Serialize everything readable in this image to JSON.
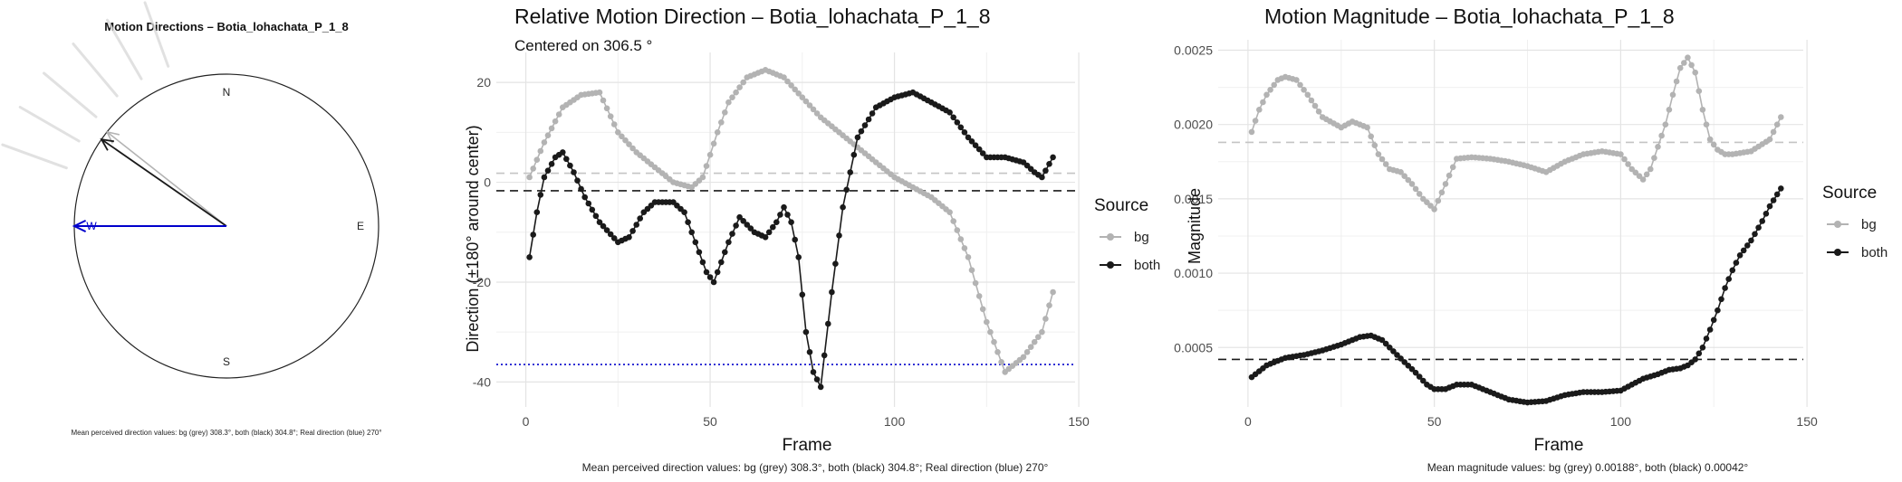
{
  "panel_compass": {
    "title": "Motion Directions – Botia_lohachata_P_1_8",
    "labels": {
      "n": "N",
      "e": "E",
      "s": "S",
      "w": "W"
    },
    "caption": "Mean perceived direction values: bg (grey) 308.3°, both (black) 304.8°; Real direction (blue) 270°"
  },
  "panel_direction": {
    "title": "Relative Motion Direction – Botia_lohachata_P_1_8",
    "subtitle": "Centered on  306.5 °",
    "caption": "Mean perceived direction values: bg (grey) 308.3°, both (black) 304.8°; Real direction (blue) 270°"
  },
  "panel_magnitude": {
    "title": "Motion Magnitude – Botia_lohachata_P_1_8",
    "caption": "Mean magnitude values: bg (grey) 0.00188°, both (black) 0.00042°"
  },
  "legend": {
    "title": "Source",
    "items": [
      "bg",
      "both"
    ]
  },
  "colors": {
    "bg": "#b3b3b3",
    "both": "#1a1a1a",
    "real": "#0000cc"
  },
  "chart_data": [
    {
      "type": "compass",
      "title": "Motion Directions – Botia_lohachata_P_1_8",
      "mean_direction_deg": {
        "bg": 308.3,
        "both": 304.8,
        "real": 270
      },
      "background_ray_angles_deg": [
        290,
        300,
        310,
        320,
        330,
        340
      ]
    },
    {
      "type": "line",
      "title": "Relative Motion Direction – Botia_lohachata_P_1_8",
      "subtitle": "Centered on  306.5 °",
      "xlabel": "Frame",
      "ylabel": "Direction (±180° around center)",
      "xlim": [
        -8,
        149
      ],
      "ylim": [
        -45,
        26
      ],
      "xticks": [
        0,
        50,
        100,
        150
      ],
      "yticks": [
        -40,
        -20,
        0,
        20
      ],
      "reference_lines": {
        "bg_mean": 1.8,
        "both_mean": -1.7,
        "real": -36.5
      },
      "series": [
        {
          "name": "bg",
          "x": [
            1,
            5,
            10,
            15,
            20,
            25,
            30,
            35,
            40,
            45,
            48,
            52,
            55,
            60,
            65,
            70,
            75,
            80,
            85,
            90,
            95,
            100,
            105,
            110,
            115,
            120,
            125,
            130,
            135,
            140,
            143
          ],
          "y": [
            1,
            8,
            15,
            17.5,
            18,
            10,
            6,
            3,
            0,
            -1,
            1,
            10,
            16,
            21,
            22.5,
            21,
            17,
            13,
            10,
            7,
            4,
            1,
            -1,
            -3,
            -6,
            -15,
            -28,
            -38,
            -35,
            -30,
            -22
          ]
        },
        {
          "name": "both",
          "x": [
            1,
            3,
            5,
            8,
            10,
            13,
            16,
            20,
            25,
            28,
            32,
            35,
            40,
            43,
            46,
            49,
            51,
            55,
            58,
            62,
            65,
            68,
            70,
            72,
            74,
            76,
            78,
            80,
            83,
            86,
            90,
            95,
            100,
            105,
            110,
            115,
            120,
            125,
            130,
            135,
            138,
            140,
            143
          ],
          "y": [
            -15,
            -6,
            1,
            5,
            6,
            2,
            -3,
            -8,
            -12,
            -11,
            -6,
            -4,
            -4,
            -6,
            -12,
            -18,
            -20,
            -12,
            -7,
            -10,
            -11,
            -8,
            -5,
            -8,
            -15,
            -30,
            -38,
            -41,
            -22,
            -5,
            9,
            15,
            17,
            18,
            16,
            14,
            9,
            5,
            5,
            4,
            2,
            1,
            5
          ]
        }
      ]
    },
    {
      "type": "line",
      "title": "Motion Magnitude – Botia_lohachata_P_1_8",
      "xlabel": "Frame",
      "ylabel": "Magnitude",
      "xlim": [
        -8,
        149
      ],
      "ylim": [
        0.0001,
        0.00257
      ],
      "xticks": [
        0,
        50,
        100,
        150
      ],
      "yticks": [
        0.0005,
        0.001,
        0.0015,
        0.002,
        0.0025
      ],
      "reference_lines": {
        "bg_mean": 0.00188,
        "both_mean": 0.00042
      },
      "series": [
        {
          "name": "bg",
          "x": [
            1,
            3,
            5,
            8,
            10,
            13,
            16,
            20,
            25,
            28,
            32,
            35,
            38,
            41,
            44,
            47,
            50,
            53,
            56,
            60,
            65,
            70,
            75,
            80,
            85,
            90,
            95,
            100,
            103,
            106,
            108,
            110,
            112,
            114,
            116,
            118,
            120,
            122,
            124,
            126,
            128,
            130,
            135,
            140,
            143
          ],
          "y": [
            0.00195,
            0.0021,
            0.0022,
            0.0023,
            0.00232,
            0.0023,
            0.0022,
            0.00205,
            0.00198,
            0.00202,
            0.00198,
            0.0018,
            0.0017,
            0.00168,
            0.0016,
            0.0015,
            0.00143,
            0.0016,
            0.00177,
            0.00178,
            0.00177,
            0.00175,
            0.00172,
            0.00168,
            0.00175,
            0.0018,
            0.00182,
            0.0018,
            0.0017,
            0.00163,
            0.0017,
            0.00185,
            0.002,
            0.0022,
            0.00238,
            0.00245,
            0.00235,
            0.0021,
            0.0019,
            0.00183,
            0.0018,
            0.0018,
            0.00182,
            0.0019,
            0.00205
          ]
        },
        {
          "name": "both",
          "x": [
            1,
            5,
            10,
            15,
            20,
            25,
            30,
            33,
            36,
            40,
            45,
            48,
            50,
            53,
            56,
            60,
            65,
            70,
            75,
            80,
            85,
            90,
            95,
            100,
            103,
            106,
            110,
            113,
            116,
            118,
            120,
            122,
            124,
            126,
            128,
            130,
            132,
            135,
            138,
            140,
            143
          ],
          "y": [
            0.0003,
            0.00038,
            0.00043,
            0.00045,
            0.00048,
            0.00052,
            0.00057,
            0.00058,
            0.00055,
            0.00045,
            0.00033,
            0.00025,
            0.00022,
            0.00022,
            0.00025,
            0.00025,
            0.0002,
            0.00015,
            0.00013,
            0.00014,
            0.00018,
            0.0002,
            0.0002,
            0.00021,
            0.00025,
            0.00029,
            0.00032,
            0.00035,
            0.00036,
            0.00038,
            0.00042,
            0.0005,
            0.00062,
            0.00075,
            0.0009,
            0.00102,
            0.00112,
            0.00122,
            0.00135,
            0.00145,
            0.00157
          ]
        }
      ]
    }
  ]
}
